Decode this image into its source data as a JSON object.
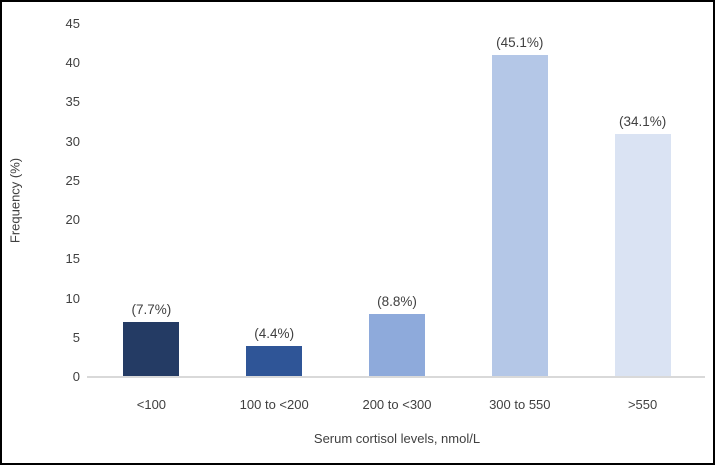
{
  "chart_data": {
    "type": "bar",
    "title": "",
    "categories": [
      "<100",
      "100 to <200",
      "200 to <300",
      "300 to 550",
      ">550"
    ],
    "values": [
      7,
      4,
      8,
      41,
      31
    ],
    "bar_labels": [
      "(7.7%)",
      "(4.4%)",
      "(8.8%)",
      "(45.1%)",
      "(34.1%)"
    ],
    "bar_colors": [
      "#243b64",
      "#2f5597",
      "#8eaadb",
      "#b4c7e7",
      "#dae3f3"
    ],
    "xlabel": "Serum cortisol levels, nmol/L",
    "ylabel": "Frequency (%)",
    "ylim": [
      0,
      45
    ],
    "yticks": [
      45,
      40,
      35,
      30,
      25,
      20,
      15,
      10,
      5,
      0
    ],
    "grid": false,
    "legend": "none",
    "axis_line_color": "#d9d9d9",
    "text_color": "#404040",
    "frame_border_color": "#000000",
    "background_color": "#ffffff"
  }
}
